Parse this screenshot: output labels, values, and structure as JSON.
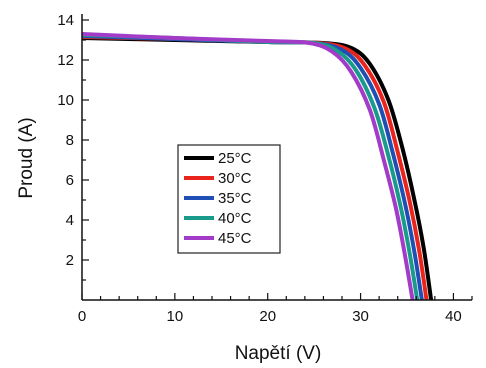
{
  "chart_data": {
    "type": "line",
    "title": "",
    "xlabel": "Napětí (V)",
    "ylabel": "Proud (A)",
    "xlim": [
      0,
      42
    ],
    "ylim": [
      0,
      14
    ],
    "x_ticks": [
      0,
      10,
      20,
      30,
      40
    ],
    "y_ticks": [
      2,
      4,
      6,
      8,
      10,
      12,
      14
    ],
    "grid": false,
    "legend_position": "center-left",
    "series": [
      {
        "name": "25°C",
        "color": "#000000",
        "points": [
          [
            0,
            13.1
          ],
          [
            10,
            13.0
          ],
          [
            20,
            12.9
          ],
          [
            26,
            12.85
          ],
          [
            29,
            12.6
          ],
          [
            31,
            11.8
          ],
          [
            33,
            10.0
          ],
          [
            34.5,
            7.6
          ],
          [
            35.8,
            5.0
          ],
          [
            36.8,
            2.6
          ],
          [
            37.6,
            0
          ]
        ]
      },
      {
        "name": "30°C",
        "color": "#e8241c",
        "points": [
          [
            0,
            13.15
          ],
          [
            10,
            13.05
          ],
          [
            20,
            12.9
          ],
          [
            25.5,
            12.85
          ],
          [
            28.5,
            12.55
          ],
          [
            30.5,
            11.7
          ],
          [
            32.5,
            9.9
          ],
          [
            34,
            7.4
          ],
          [
            35.3,
            4.9
          ],
          [
            36.3,
            2.5
          ],
          [
            37.1,
            0
          ]
        ]
      },
      {
        "name": "35°C",
        "color": "#1f4fb5",
        "points": [
          [
            0,
            13.2
          ],
          [
            10,
            13.05
          ],
          [
            20,
            12.9
          ],
          [
            25,
            12.85
          ],
          [
            28,
            12.5
          ],
          [
            30,
            11.6
          ],
          [
            32,
            9.8
          ],
          [
            33.5,
            7.3
          ],
          [
            34.8,
            4.8
          ],
          [
            35.8,
            2.4
          ],
          [
            36.6,
            0
          ]
        ]
      },
      {
        "name": "40°C",
        "color": "#1a9a8a",
        "points": [
          [
            0,
            13.25
          ],
          [
            10,
            13.1
          ],
          [
            20,
            12.9
          ],
          [
            25,
            12.85
          ],
          [
            27.5,
            12.45
          ],
          [
            29.5,
            11.5
          ],
          [
            31.5,
            9.6
          ],
          [
            33,
            7.2
          ],
          [
            34.3,
            4.7
          ],
          [
            35.3,
            2.3
          ],
          [
            36.1,
            0
          ]
        ]
      },
      {
        "name": "45°C",
        "color": "#a23cc8",
        "points": [
          [
            0,
            13.3
          ],
          [
            10,
            13.1
          ],
          [
            20,
            12.95
          ],
          [
            24.5,
            12.85
          ],
          [
            27,
            12.4
          ],
          [
            29,
            11.4
          ],
          [
            31,
            9.5
          ],
          [
            32.5,
            7.0
          ],
          [
            33.8,
            4.6
          ],
          [
            34.8,
            2.2
          ],
          [
            35.6,
            0
          ]
        ]
      }
    ]
  }
}
